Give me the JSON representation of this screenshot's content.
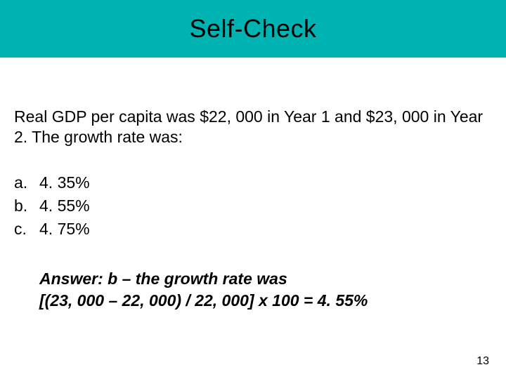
{
  "header": {
    "title": "Self-Check",
    "background_color": "#00b3b3",
    "title_fontsize": 36,
    "title_color": "#000000"
  },
  "question": {
    "text": "Real GDP per capita was $22, 000 in Year 1 and $23, 000 in Year 2. The growth rate was:",
    "fontsize": 23,
    "color": "#000000"
  },
  "options": [
    {
      "letter": "a.",
      "text": "4. 35%"
    },
    {
      "letter": "b.",
      "text": "4. 55%"
    },
    {
      "letter": "c.",
      "text": "4. 75%"
    }
  ],
  "answer": {
    "line1": "Answer:  b – the growth rate was",
    "line2": "[(23, 000 – 22, 000) / 22, 000] x 100 = 4. 55%",
    "fontsize": 23,
    "bold": true,
    "italic": true
  },
  "page_number": "13",
  "background_color": "#ffffff"
}
